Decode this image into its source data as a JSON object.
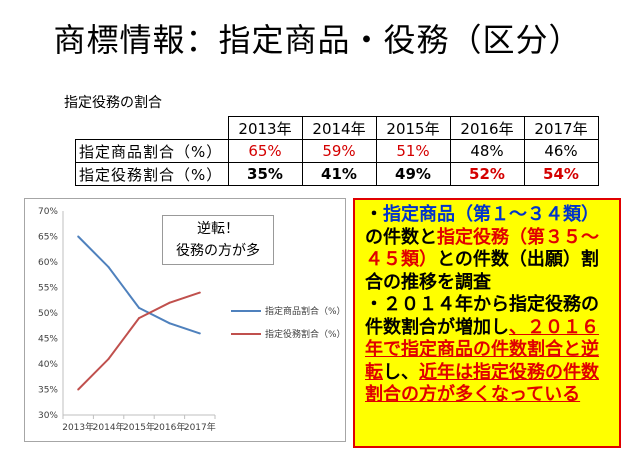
{
  "title": "商標情報：指定商品・役務（区分）",
  "table": {
    "caption": "指定役務の割合",
    "years": [
      "2013年",
      "2014年",
      "2015年",
      "2016年",
      "2017年"
    ],
    "rows": [
      {
        "label": "指定商品割合（%）",
        "values": [
          "65%",
          "59%",
          "51%",
          "48%",
          "46%"
        ],
        "red": [
          true,
          true,
          true,
          false,
          false
        ],
        "bold": false
      },
      {
        "label": "指定役務割合（%）",
        "values": [
          "35%",
          "41%",
          "49%",
          "52%",
          "54%"
        ],
        "red": [
          false,
          false,
          false,
          true,
          true
        ],
        "bold": true
      }
    ]
  },
  "callout": {
    "line1": "逆転！",
    "line2": "役務の方が多"
  },
  "notes": {
    "p1": [
      "・",
      "指定商品（第１～３４類）",
      "の件数と",
      "指定役務（第３５～４５類）",
      "との件数（出願）割合の推移を調査"
    ],
    "p2": [
      "・２０１４年から指定役務の件数割合が増加し",
      "、２０１６年で指定商品の件数割合と逆転",
      "し、",
      "近年は指定役務の件数割合の方が多くなっている"
    ]
  },
  "colors": {
    "goods": "#4f81bd",
    "services": "#c0504d",
    "highlight": "#ffff00",
    "alert": "#e00000",
    "accent": "#0033cc"
  },
  "chart_data": {
    "type": "line",
    "categories": [
      "2013年",
      "2014年",
      "2015年",
      "2016年",
      "2017年"
    ],
    "ylim": [
      30,
      70
    ],
    "yticks": [
      "30%",
      "35%",
      "40%",
      "45%",
      "50%",
      "55%",
      "60%",
      "65%",
      "70%"
    ],
    "series": [
      {
        "name": "指定商品割合（%）",
        "values": [
          65,
          59,
          51,
          48,
          46
        ],
        "color": "#4f81bd"
      },
      {
        "name": "指定役務割合（%）",
        "values": [
          35,
          41,
          49,
          52,
          54
        ],
        "color": "#c0504d"
      }
    ],
    "grid": false,
    "legend": "right"
  }
}
